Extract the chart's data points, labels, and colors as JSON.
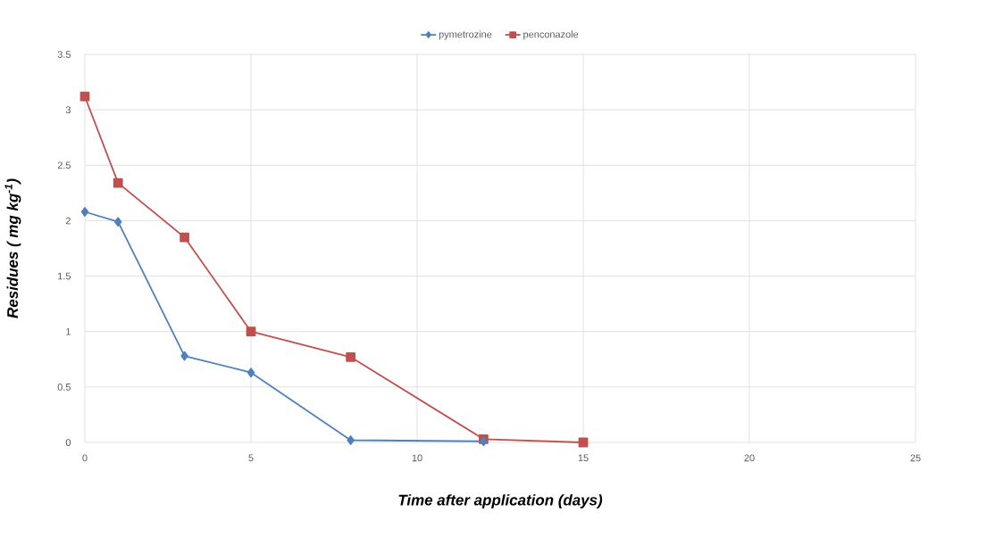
{
  "chart_data": {
    "type": "line",
    "xlabel": "Time after application (days)",
    "ylabel": "Residues ( mg kg$^{-1}$)",
    "xlim": [
      0,
      25
    ],
    "ylim": [
      0,
      3.5
    ],
    "xticks": [
      0,
      5,
      10,
      15,
      20,
      25
    ],
    "yticks": [
      0,
      0.5,
      1,
      1.5,
      2,
      2.5,
      3,
      3.5
    ],
    "grid": true,
    "legend": "top",
    "series": [
      {
        "name": "pymetrozine",
        "color": "#4f81bd",
        "marker": "diamond",
        "x": [
          0,
          1,
          3,
          5,
          8,
          12
        ],
        "values": [
          2.08,
          1.99,
          0.78,
          0.63,
          0.02,
          0.01
        ]
      },
      {
        "name": "penconazole",
        "color": "#c0504d",
        "marker": "square",
        "x": [
          0,
          1,
          3,
          5,
          8,
          12,
          15
        ],
        "values": [
          3.12,
          2.34,
          1.85,
          1.0,
          0.77,
          0.03,
          0.0
        ]
      }
    ]
  }
}
